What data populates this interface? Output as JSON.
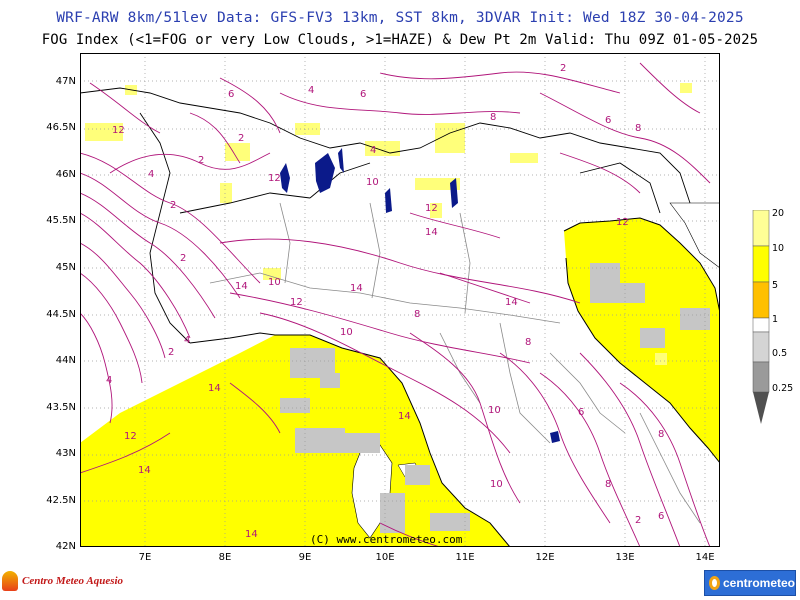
{
  "header": {
    "line1": "WRF-ARW 8km/51lev  Data: GFS-FV3 13km, SST 8km, 3DVAR  Init: Wed 18Z 30-04-2025",
    "line2": "FOG Index (<1=FOG or very Low Clouds, >1=HAZE) & Dew Pt 2m  Valid: Thu 09Z 01-05-2025"
  },
  "map": {
    "latitude_ticks": [
      "47N",
      "46.5N",
      "46N",
      "45.5N",
      "45N",
      "44.5N",
      "44N",
      "43.5N",
      "43N",
      "42.5N",
      "42N"
    ],
    "longitude_ticks": [
      "7E",
      "8E",
      "9E",
      "10E",
      "11E",
      "12E",
      "13E",
      "14E"
    ],
    "copyright": "(C) www.centrometeo.com",
    "contour_labels": [
      "2",
      "4",
      "6",
      "8",
      "10",
      "12",
      "14"
    ],
    "colors": {
      "sea_yellow": "#ffff00",
      "light_yellow": "#ffff7a",
      "fog_grey": "#c6c6c6",
      "contour_magenta": "#b0157a",
      "lakes": "#0b1a8a"
    }
  },
  "colorbar": {
    "labels": [
      "20",
      "10",
      "5",
      "1",
      "0.5",
      "0.25"
    ],
    "colors": [
      "#ffff96",
      "#ffff00",
      "#ffc000",
      "#ffffff",
      "#d4d4d4",
      "#9a9a9a",
      "#505050"
    ]
  },
  "logos": {
    "left": "Centro Meteo Aquesio",
    "right": "centrometeo"
  }
}
